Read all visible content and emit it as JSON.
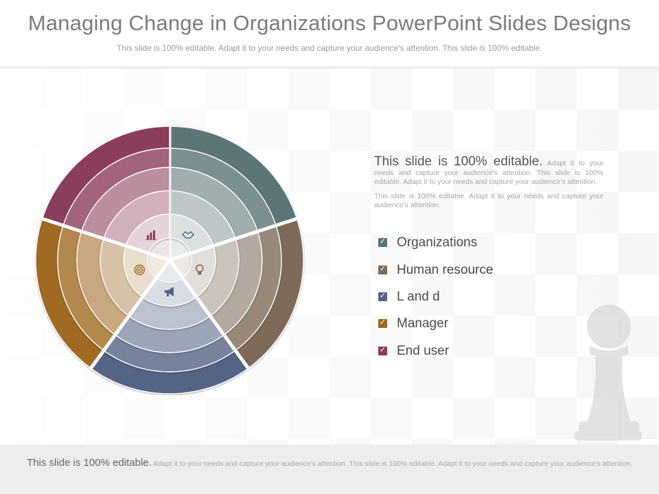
{
  "title": "Managing Change in Organizations PowerPoint Slides Designs",
  "subtitle": "This slide is 100% editable. Adapt it to your needs and capture your audience's attention. This slide is 100% editable.",
  "text_block": {
    "heading": "This slide is 100% editable.",
    "body1": " Adapt it to your needs and capture your audience's attention. This slide is 100% editable. Adapt it to your needs and capture your audience's attention.",
    "body2": "This slide is 100% editable. Adapt it to your needs and capture your audience's attention."
  },
  "legend": [
    {
      "label": "Organizations",
      "color": "#5b7476",
      "icon": "handshake-icon"
    },
    {
      "label": "Human  resource",
      "color": "#7d6a58",
      "icon": "lightbulb-icon"
    },
    {
      "label": "L and d",
      "color": "#556485",
      "icon": "megaphone-icon"
    },
    {
      "label": "Manager",
      "color": "#a06a22",
      "icon": "target-icon"
    },
    {
      "label": "End user",
      "color": "#8b3d5c",
      "icon": "bar-chart-icon"
    }
  ],
  "check_glyph": "✓",
  "footer": {
    "heading": "This slide is 100% editable.",
    "body": " Adapt it to your needs and capture your audience's attention. This slide is 100% editable. Adapt it to your needs and capture your audience's attention."
  }
}
